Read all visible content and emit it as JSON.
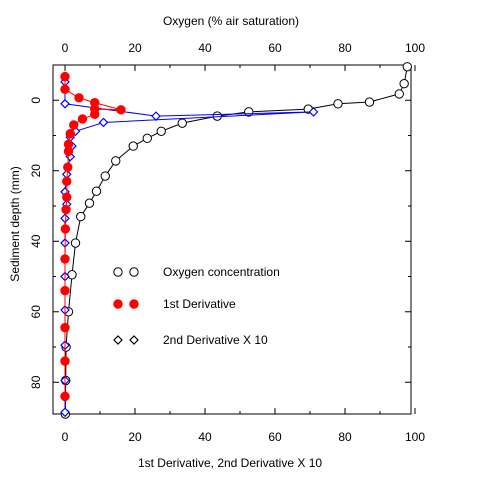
{
  "chart_data": {
    "type": "scatter",
    "title": "",
    "x_top_label": "Oxygen (% air saturation)",
    "x_bottom_label": "1st Derivative, 2nd Derivative X 10",
    "ylabel": "Sediment depth (mm)",
    "xlim": [
      0,
      100
    ],
    "ylim": [
      -10,
      89
    ],
    "y_inverted": true,
    "x_ticks": [
      0,
      20,
      40,
      60,
      80,
      100
    ],
    "y_ticks": [
      0,
      20,
      40,
      60,
      80
    ],
    "x_tick_labels": [
      "0",
      "20",
      "40",
      "60",
      "80",
      "100"
    ],
    "y_tick_labels": [
      "0",
      "20",
      "40",
      "60",
      "80"
    ],
    "grid": false,
    "legend": {
      "placement": "center-left",
      "entries": [
        {
          "series": "oxygen",
          "label": "Oxygen concentration"
        },
        {
          "series": "first",
          "label": "1st Derivative"
        },
        {
          "series": "second",
          "label": "2nd Derivative X 10"
        }
      ]
    },
    "series": [
      {
        "key": "oxygen",
        "name": "Oxygen concentration",
        "axis": "top",
        "marker": "circle",
        "color": "#000000",
        "fill": "#ffffff",
        "line_color": "#000000",
        "points": [
          {
            "x": 97.8,
            "y": -9.5
          },
          {
            "x": 96.9,
            "y": -4.7
          },
          {
            "x": 95.5,
            "y": -1.8
          },
          {
            "x": 87.0,
            "y": 0.5
          },
          {
            "x": 78.0,
            "y": 1.0
          },
          {
            "x": 69.5,
            "y": 2.5
          },
          {
            "x": 52.5,
            "y": 3.3
          },
          {
            "x": 43.5,
            "y": 4.5
          },
          {
            "x": 33.5,
            "y": 6.5
          },
          {
            "x": 27.5,
            "y": 8.8
          },
          {
            "x": 23.5,
            "y": 10.8
          },
          {
            "x": 19.5,
            "y": 13.0
          },
          {
            "x": 14.5,
            "y": 17.2
          },
          {
            "x": 11.5,
            "y": 21.5
          },
          {
            "x": 9.0,
            "y": 25.8
          },
          {
            "x": 7.0,
            "y": 29.2
          },
          {
            "x": 4.5,
            "y": 33.0
          },
          {
            "x": 3.0,
            "y": 40.5
          },
          {
            "x": 2.0,
            "y": 49.5
          },
          {
            "x": 1.0,
            "y": 60.0
          },
          {
            "x": 0.3,
            "y": 70.0
          },
          {
            "x": 0.2,
            "y": 79.5
          },
          {
            "x": 0.1,
            "y": 89.0
          }
        ]
      },
      {
        "key": "first",
        "name": "1st Derivative",
        "axis": "bottom",
        "marker": "filled-circle",
        "color": "#ff0000",
        "fill": "#ff0000",
        "line_color": "#ff0000",
        "points": [
          {
            "x": 0.0,
            "y": -6.7
          },
          {
            "x": 0.0,
            "y": -3.1
          },
          {
            "x": 4.0,
            "y": -0.7
          },
          {
            "x": 8.5,
            "y": 0.7
          },
          {
            "x": 16.0,
            "y": 2.7
          },
          {
            "x": 8.5,
            "y": 2.5
          },
          {
            "x": 8.5,
            "y": 4.0
          },
          {
            "x": 5.0,
            "y": 5.3
          },
          {
            "x": 2.5,
            "y": 7.0
          },
          {
            "x": 1.5,
            "y": 9.5
          },
          {
            "x": 1.0,
            "y": 12.5
          },
          {
            "x": 1.0,
            "y": 14.5
          },
          {
            "x": 0.8,
            "y": 19.0
          },
          {
            "x": 0.5,
            "y": 23.0
          },
          {
            "x": 0.5,
            "y": 27.5
          },
          {
            "x": 0.3,
            "y": 31.0
          },
          {
            "x": 0.1,
            "y": 36.5
          },
          {
            "x": 0.0,
            "y": 45.0
          },
          {
            "x": 0.0,
            "y": 54.0
          },
          {
            "x": 0.0,
            "y": 64.5
          },
          {
            "x": 0.0,
            "y": 74.0
          },
          {
            "x": 0.0,
            "y": 84.0
          }
        ]
      },
      {
        "key": "second",
        "name": "2nd Derivative X 10",
        "axis": "bottom",
        "marker": "diamond",
        "color": "#0000ff",
        "fill": "#ffffff",
        "line_color": "#0000ff",
        "points": [
          {
            "x": 0.0,
            "y": -5.2
          },
          {
            "x": 0.0,
            "y": 1.0
          },
          {
            "x": 26.0,
            "y": 4.5
          },
          {
            "x": 71.0,
            "y": 3.3
          },
          {
            "x": 11.0,
            "y": 6.3
          },
          {
            "x": 3.0,
            "y": 8.8
          },
          {
            "x": 1.5,
            "y": 10.5
          },
          {
            "x": 2.0,
            "y": 13.0
          },
          {
            "x": 1.5,
            "y": 16.0
          },
          {
            "x": 0.5,
            "y": 21.0
          },
          {
            "x": 0.0,
            "y": 26.0
          },
          {
            "x": 0.5,
            "y": 29.5
          },
          {
            "x": 0.0,
            "y": 33.5
          },
          {
            "x": 0.0,
            "y": 40.5
          },
          {
            "x": 0.0,
            "y": 50.0
          },
          {
            "x": 0.0,
            "y": 59.5
          },
          {
            "x": 0.0,
            "y": 69.5
          },
          {
            "x": 0.0,
            "y": 79.5
          },
          {
            "x": 0.0,
            "y": 88.5
          }
        ]
      }
    ]
  }
}
